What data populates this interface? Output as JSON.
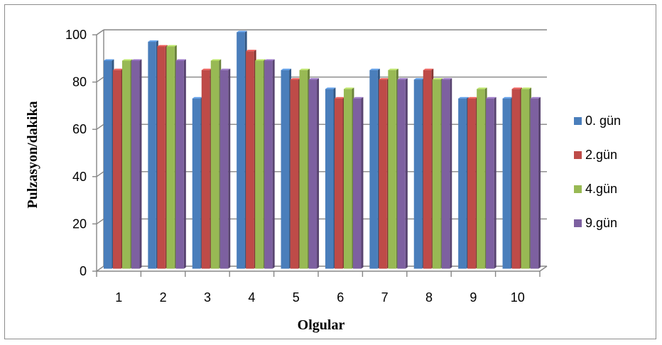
{
  "chart_data": {
    "type": "bar",
    "title": "",
    "xlabel": "Olgular",
    "ylabel": "Pulzasyon/dakika",
    "ylim": [
      0,
      100
    ],
    "yticks": [
      0,
      20,
      40,
      60,
      80,
      100
    ],
    "grid": true,
    "legend_position": "right",
    "categories": [
      "1",
      "2",
      "3",
      "4",
      "5",
      "6",
      "7",
      "8",
      "9",
      "10"
    ],
    "series": [
      {
        "name": "0. gün",
        "color": "#4a7ebb",
        "values": [
          88,
          96,
          72,
          100,
          84,
          76,
          84,
          80,
          72,
          72
        ]
      },
      {
        "name": "2.gün",
        "color": "#be4b48",
        "values": [
          84,
          94,
          84,
          92,
          80,
          72,
          80,
          84,
          72,
          76
        ]
      },
      {
        "name": "4.gün",
        "color": "#98b954",
        "values": [
          88,
          94,
          88,
          88,
          84,
          76,
          84,
          80,
          76,
          76
        ]
      },
      {
        "name": "9.gün",
        "color": "#7d60a0",
        "values": [
          88,
          88,
          84,
          88,
          80,
          72,
          80,
          80,
          72,
          72
        ]
      }
    ]
  }
}
